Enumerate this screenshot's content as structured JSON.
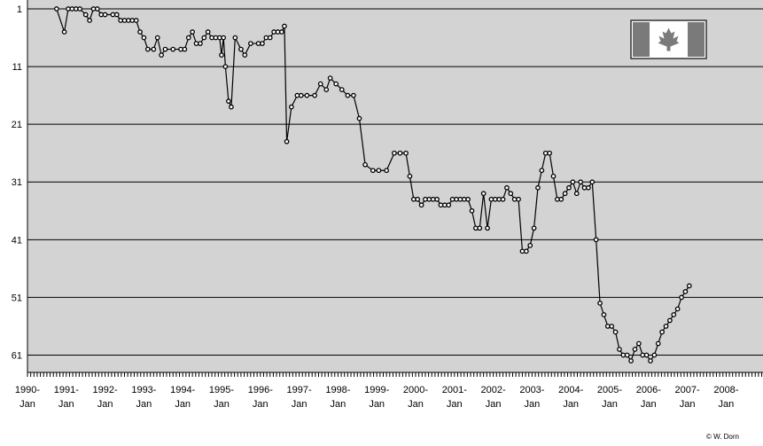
{
  "chart_data": {
    "type": "line",
    "title": "",
    "xlabel": "",
    "ylabel": "",
    "y_inverted": true,
    "ylim": [
      1,
      61
    ],
    "yticks": [
      1,
      11,
      21,
      31,
      41,
      51,
      61
    ],
    "x_axis_labels": [
      [
        "1990-",
        "Jan"
      ],
      [
        "1991-",
        "Jan"
      ],
      [
        "1992-",
        "Jan"
      ],
      [
        "1993-",
        "Jan"
      ],
      [
        "1994-",
        "Jan"
      ],
      [
        "1995-",
        "Jan"
      ],
      [
        "1996-",
        "Jan"
      ],
      [
        "1997-",
        "Jan"
      ],
      [
        "1998-",
        "Jan"
      ],
      [
        "1999-",
        "Jan"
      ],
      [
        "2000-",
        "Jan"
      ],
      [
        "2001-",
        "Jan"
      ],
      [
        "2002-",
        "Jan"
      ],
      [
        "2003-",
        "Jan"
      ],
      [
        "2004-",
        "Jan"
      ],
      [
        "2005-",
        "Jan"
      ],
      [
        "2006-",
        "Jan"
      ],
      [
        "2007-",
        "Jan"
      ],
      [
        "2008-",
        "Jan"
      ]
    ],
    "start_year": 1990,
    "grid": true,
    "background_color": "#d3d3d3",
    "line_color": "#000000",
    "marker_fill": "#ffffff",
    "flag_icon": "canada-flag-icon",
    "flag_colors": {
      "red": "#c8102e",
      "white": "#ffffff",
      "border": "#333333"
    },
    "series": [
      {
        "name": "",
        "points": [
          [
            1990.75,
            1
          ],
          [
            1990.95,
            5
          ],
          [
            1991.05,
            1
          ],
          [
            1991.15,
            1
          ],
          [
            1991.25,
            1
          ],
          [
            1991.35,
            1
          ],
          [
            1991.5,
            2
          ],
          [
            1991.6,
            3
          ],
          [
            1991.7,
            1
          ],
          [
            1991.8,
            1
          ],
          [
            1991.9,
            2
          ],
          [
            1992.0,
            2
          ],
          [
            1992.2,
            2
          ],
          [
            1992.3,
            2
          ],
          [
            1992.4,
            3
          ],
          [
            1992.5,
            3
          ],
          [
            1992.6,
            3
          ],
          [
            1992.7,
            3
          ],
          [
            1992.8,
            3
          ],
          [
            1992.9,
            5
          ],
          [
            1993.0,
            6
          ],
          [
            1993.1,
            8
          ],
          [
            1993.25,
            8
          ],
          [
            1993.35,
            6
          ],
          [
            1993.45,
            9
          ],
          [
            1993.55,
            8
          ],
          [
            1993.75,
            8
          ],
          [
            1993.95,
            8
          ],
          [
            1994.05,
            8
          ],
          [
            1994.15,
            6
          ],
          [
            1994.25,
            5
          ],
          [
            1994.35,
            7
          ],
          [
            1994.45,
            7
          ],
          [
            1994.55,
            6
          ],
          [
            1994.65,
            5
          ],
          [
            1994.75,
            6
          ],
          [
            1994.85,
            6
          ],
          [
            1994.95,
            6
          ],
          [
            1995.0,
            9
          ],
          [
            1995.05,
            6
          ],
          [
            1995.1,
            11
          ],
          [
            1995.18,
            17
          ],
          [
            1995.25,
            18
          ],
          [
            1995.35,
            6
          ],
          [
            1995.5,
            8
          ],
          [
            1995.6,
            9
          ],
          [
            1995.75,
            7
          ],
          [
            1995.95,
            7
          ],
          [
            1996.05,
            7
          ],
          [
            1996.15,
            6
          ],
          [
            1996.25,
            6
          ],
          [
            1996.35,
            5
          ],
          [
            1996.45,
            5
          ],
          [
            1996.55,
            5
          ],
          [
            1996.62,
            4
          ],
          [
            1996.68,
            24
          ],
          [
            1996.8,
            18
          ],
          [
            1996.95,
            16
          ],
          [
            1997.05,
            16
          ],
          [
            1997.2,
            16
          ],
          [
            1997.4,
            16
          ],
          [
            1997.55,
            14
          ],
          [
            1997.7,
            15
          ],
          [
            1997.8,
            13
          ],
          [
            1997.95,
            14
          ],
          [
            1998.1,
            15
          ],
          [
            1998.25,
            16
          ],
          [
            1998.4,
            16
          ],
          [
            1998.55,
            20
          ],
          [
            1998.7,
            28
          ],
          [
            1998.9,
            29
          ],
          [
            1999.05,
            29
          ],
          [
            1999.25,
            29
          ],
          [
            1999.45,
            26
          ],
          [
            1999.6,
            26
          ],
          [
            1999.75,
            26
          ],
          [
            1999.85,
            30
          ],
          [
            1999.95,
            34
          ],
          [
            2000.05,
            34
          ],
          [
            2000.15,
            35
          ],
          [
            2000.25,
            34
          ],
          [
            2000.35,
            34
          ],
          [
            2000.45,
            34
          ],
          [
            2000.55,
            34
          ],
          [
            2000.65,
            35
          ],
          [
            2000.75,
            35
          ],
          [
            2000.85,
            35
          ],
          [
            2000.95,
            34
          ],
          [
            2001.05,
            34
          ],
          [
            2001.15,
            34
          ],
          [
            2001.25,
            34
          ],
          [
            2001.35,
            34
          ],
          [
            2001.45,
            36
          ],
          [
            2001.55,
            39
          ],
          [
            2001.65,
            39
          ],
          [
            2001.75,
            33
          ],
          [
            2001.85,
            39
          ],
          [
            2001.95,
            34
          ],
          [
            2002.05,
            34
          ],
          [
            2002.15,
            34
          ],
          [
            2002.25,
            34
          ],
          [
            2002.35,
            32
          ],
          [
            2002.45,
            33
          ],
          [
            2002.55,
            34
          ],
          [
            2002.65,
            34
          ],
          [
            2002.75,
            43
          ],
          [
            2002.85,
            43
          ],
          [
            2002.95,
            42
          ],
          [
            2003.05,
            39
          ],
          [
            2003.15,
            32
          ],
          [
            2003.25,
            29
          ],
          [
            2003.35,
            26
          ],
          [
            2003.45,
            26
          ],
          [
            2003.55,
            30
          ],
          [
            2003.65,
            34
          ],
          [
            2003.75,
            34
          ],
          [
            2003.85,
            33
          ],
          [
            2003.95,
            32
          ],
          [
            2004.05,
            31
          ],
          [
            2004.15,
            33
          ],
          [
            2004.25,
            31
          ],
          [
            2004.35,
            32
          ],
          [
            2004.45,
            32
          ],
          [
            2004.55,
            31
          ],
          [
            2004.65,
            41
          ],
          [
            2004.75,
            52
          ],
          [
            2004.85,
            54
          ],
          [
            2004.95,
            56
          ],
          [
            2005.05,
            56
          ],
          [
            2005.15,
            57
          ],
          [
            2005.25,
            60
          ],
          [
            2005.35,
            61
          ],
          [
            2005.45,
            61
          ],
          [
            2005.55,
            62
          ],
          [
            2005.65,
            60
          ],
          [
            2005.75,
            59
          ],
          [
            2005.85,
            61
          ],
          [
            2005.95,
            61
          ],
          [
            2006.05,
            62
          ],
          [
            2006.15,
            61
          ],
          [
            2006.25,
            59
          ],
          [
            2006.35,
            57
          ],
          [
            2006.45,
            56
          ],
          [
            2006.55,
            55
          ],
          [
            2006.65,
            54
          ],
          [
            2006.75,
            53
          ],
          [
            2006.85,
            51
          ],
          [
            2006.95,
            50
          ],
          [
            2007.05,
            49
          ]
        ]
      }
    ]
  },
  "credit": "© W. Dorn"
}
